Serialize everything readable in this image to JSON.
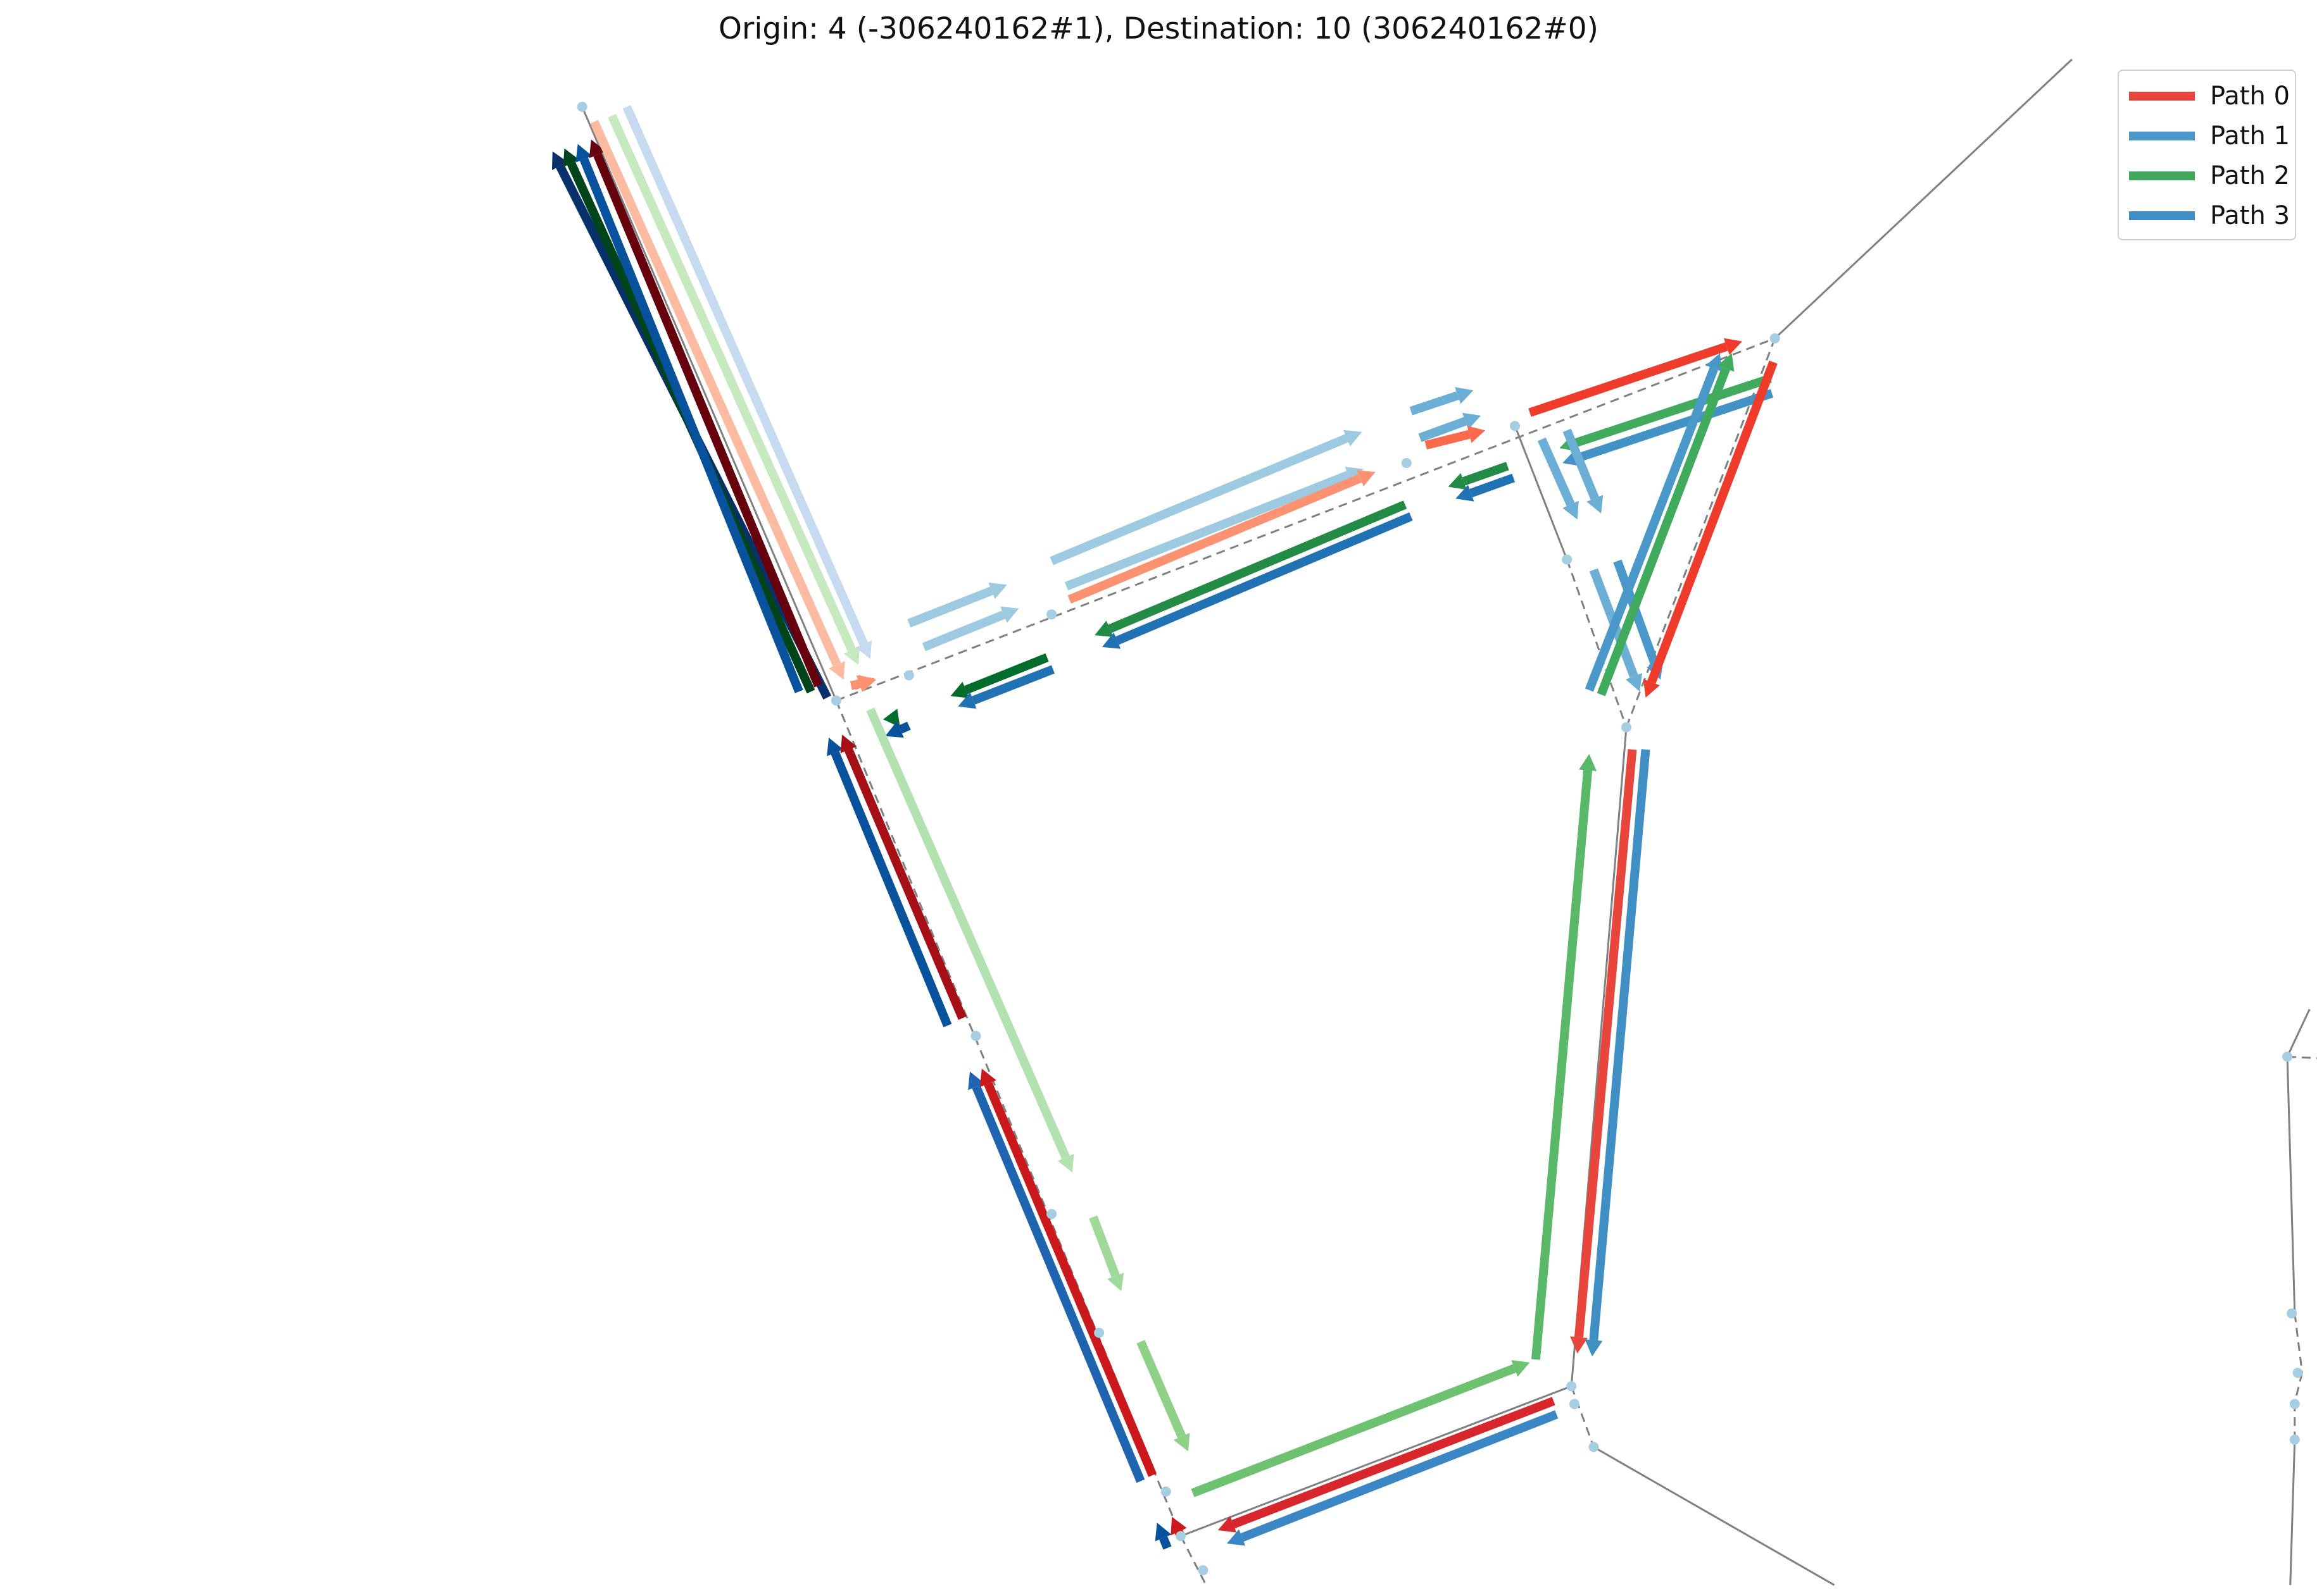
{
  "title": "Origin: 4 (-306240162#1), Destination: 10 (306240162#0)",
  "legend": {
    "items": [
      {
        "label": "Path 0",
        "color": "#e8453c"
      },
      {
        "label": "Path 1",
        "color": "#4a98c9"
      },
      {
        "label": "Path 2",
        "color": "#40a95c"
      },
      {
        "label": "Path 3",
        "color": "#3f8fc4"
      }
    ]
  },
  "colors": {
    "road": "#808080",
    "node": "#a6cee3"
  }
}
